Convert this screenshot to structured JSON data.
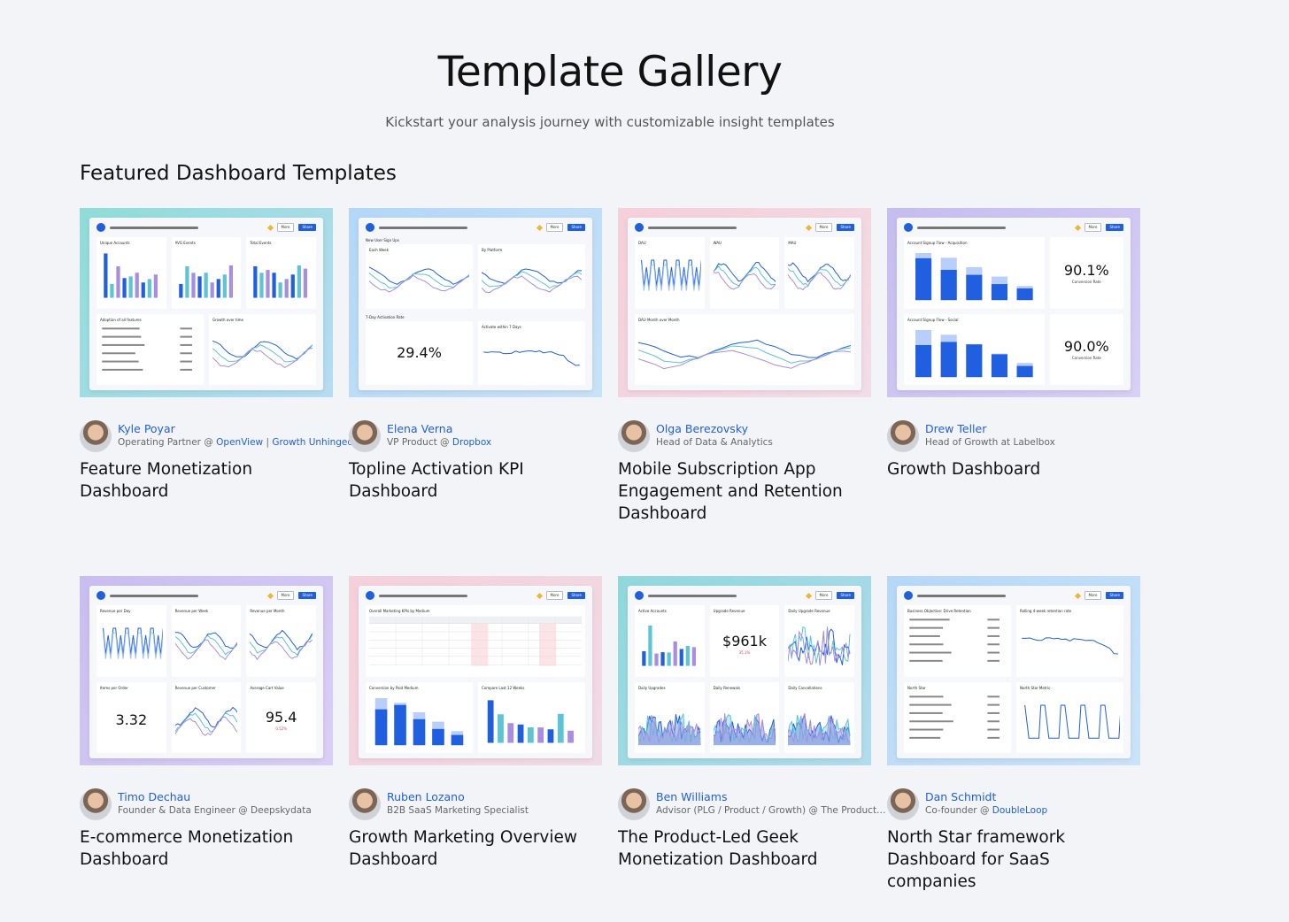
{
  "header": {
    "title": "Template Gallery",
    "subtitle": "Kickstart your analysis journey with customizable insight templates"
  },
  "section": {
    "title": "Featured Dashboard Templates"
  },
  "toolbar": {
    "more": "More",
    "share": "Share"
  },
  "cards": [
    {
      "colors": [
        "#8fdcd8",
        "#b7dcf3"
      ],
      "author": {
        "name": "Kyle Poyar",
        "role": [
          {
            "text": "Operating Partner @ ",
            "link": false
          },
          {
            "text": "OpenView",
            "link": true
          },
          {
            "text": " | ",
            "link": false
          },
          {
            "text": "Growth Unhinged",
            "link": true
          }
        ]
      },
      "title": "Feature Monetization Dashboard",
      "preview": {
        "rows": [
          {
            "widgets": [
              {
                "title": "Unique Accounts",
                "chart": "bar"
              },
              {
                "title": "AVG Events",
                "chart": "bar"
              },
              {
                "title": "Total Events",
                "chart": "bar"
              }
            ]
          },
          {
            "widgets": [
              {
                "title": "Adoption of all features",
                "chart": "list"
              },
              {
                "title": "Growth over time",
                "chart": "line"
              }
            ]
          }
        ]
      }
    },
    {
      "colors": [
        "#b3d7f7",
        "#c8e2f8"
      ],
      "author": {
        "name": "Elena Verna",
        "role": [
          {
            "text": "VP Product @ ",
            "link": false
          },
          {
            "text": "Dropbox",
            "link": true
          }
        ]
      },
      "title": "Topline Activation KPI Dashboard",
      "preview": {
        "rows": [
          {
            "label": "New User Sign Ups",
            "widgets": [
              {
                "title": "Each Week",
                "chart": "line"
              },
              {
                "title": "By Platform",
                "chart": "line"
              }
            ]
          },
          {
            "label": "7-Day Activation Rate",
            "widgets": [
              {
                "chart": "number",
                "value": "29.4%"
              },
              {
                "title": "Activate within 7 Days",
                "chart": "flat"
              }
            ]
          }
        ]
      }
    },
    {
      "colors": [
        "#f5cfd9",
        "#f2dde6"
      ],
      "author": {
        "name": "Olga Berezovsky",
        "role": [
          {
            "text": "Head of Data & Analytics",
            "link": false
          }
        ]
      },
      "title": "Mobile Subscription App Engagement and Retention Dashboard",
      "preview": {
        "rows": [
          {
            "widgets": [
              {
                "title": "DAU",
                "chart": "wave"
              },
              {
                "title": "WAU",
                "chart": "line"
              },
              {
                "title": "MAU",
                "chart": "line"
              }
            ]
          },
          {
            "widgets": [
              {
                "title": "DAU Month over Month",
                "chart": "line"
              }
            ]
          }
        ]
      }
    },
    {
      "colors": [
        "#c6bdf0",
        "#d8d0f5"
      ],
      "author": {
        "name": "Drew Teller",
        "role": [
          {
            "text": "Head of Growth at Labelbox",
            "link": false
          }
        ]
      },
      "title": "Growth Dashboard",
      "preview": {
        "rows": [
          {
            "widgets": [
              {
                "title": "Account Signup Flow - Acquisition",
                "chart": "funnel"
              },
              {
                "chart": "number",
                "value": "90.1%",
                "caption": "Conversion Rate"
              }
            ]
          },
          {
            "widgets": [
              {
                "title": "Account Signup Flow - Social",
                "chart": "funnel"
              },
              {
                "chart": "number",
                "value": "90.0%",
                "caption": "Conversion Rate"
              }
            ]
          }
        ]
      }
    },
    {
      "colors": [
        "#c9bdf0",
        "#d9cff6"
      ],
      "author": {
        "name": "Timo Dechau",
        "role": [
          {
            "text": "Founder & Data Engineer @ Deepskydata",
            "link": false
          }
        ]
      },
      "title": "E-commerce Monetization Dashboard",
      "preview": {
        "rows": [
          {
            "widgets": [
              {
                "title": "Revenue per Day",
                "chart": "wave"
              },
              {
                "title": "Revenue per Week",
                "chart": "line"
              },
              {
                "title": "Revenue per Month",
                "chart": "line"
              }
            ]
          },
          {
            "widgets": [
              {
                "title": "Items per Order",
                "chart": "number",
                "value": "3.32"
              },
              {
                "title": "Revenue per Customer",
                "chart": "line"
              },
              {
                "title": "Average Cart Value",
                "chart": "number",
                "value": "95.4",
                "delta": "0.52%"
              }
            ]
          }
        ]
      }
    },
    {
      "colors": [
        "#f5d0da",
        "#f0dbe5"
      ],
      "author": {
        "name": "Ruben Lozano",
        "role": [
          {
            "text": "B2B SaaS Marketing Specialist",
            "link": false
          }
        ]
      },
      "title": "Growth Marketing Overview Dashboard",
      "preview": {
        "rows": [
          {
            "widgets": [
              {
                "title": "Overall Marketing KPIs by Medium",
                "chart": "table"
              }
            ]
          },
          {
            "widgets": [
              {
                "title": "Conversion by Paid Medium",
                "chart": "funnel"
              },
              {
                "title": "Compare Last 12 Weeks",
                "chart": "bar"
              }
            ]
          }
        ]
      }
    },
    {
      "colors": [
        "#8fd8dc",
        "#b3dcef"
      ],
      "author": {
        "name": "Ben Williams",
        "role": [
          {
            "text": "Advisor (PLG / Product / Growth) @ The Product…",
            "link": false
          }
        ]
      },
      "title": "The Product-Led Geek Monetization Dashboard",
      "preview": {
        "rows": [
          {
            "widgets": [
              {
                "title": "Active Accounts",
                "chart": "bar"
              },
              {
                "title": "Upgrade Revenue",
                "chart": "number",
                "value": "$961k",
                "delta": "35.1%"
              },
              {
                "title": "Daily Upgrade Revenue",
                "chart": "spiky"
              }
            ]
          },
          {
            "widgets": [
              {
                "title": "Daily Upgrades",
                "chart": "area"
              },
              {
                "title": "Daily Renewals",
                "chart": "area"
              },
              {
                "title": "Daily Cancellations",
                "chart": "area"
              }
            ]
          }
        ]
      }
    },
    {
      "colors": [
        "#b5d8f7",
        "#cbe3f9"
      ],
      "author": {
        "name": "Dan Schmidt",
        "role": [
          {
            "text": "Co-founder @ ",
            "link": false
          },
          {
            "text": "DoubleLoop",
            "link": true
          }
        ]
      },
      "title": "North Star framework Dashboard for SaaS companies",
      "preview": {
        "rows": [
          {
            "widgets": [
              {
                "title": "Business Objective: Drive Retention",
                "chart": "list"
              },
              {
                "title": "Rolling 4-week retention rate",
                "chart": "flat"
              }
            ]
          },
          {
            "widgets": [
              {
                "title": "North Star",
                "chart": "list"
              },
              {
                "title": "North Star Metric",
                "chart": "square"
              }
            ]
          }
        ]
      }
    }
  ]
}
